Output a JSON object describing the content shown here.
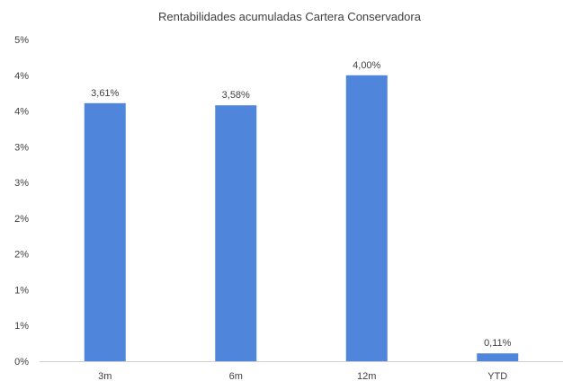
{
  "chart_data": {
    "type": "bar",
    "title": "Rentabilidades  acumuladas  Cartera Conservadora",
    "categories": [
      "3m",
      "6m",
      "12m",
      "YTD"
    ],
    "values": [
      3.61,
      3.58,
      4.0,
      0.11
    ],
    "data_labels": [
      "3,61%",
      "3,58%",
      "4,00%",
      "0,11%"
    ],
    "y_axis": {
      "ylim": [
        0,
        4.5
      ],
      "tick_values": [
        0,
        0.5,
        1,
        1.5,
        2,
        2.5,
        3,
        3.5,
        4,
        4.5
      ],
      "tick_labels": [
        "0%",
        "1%",
        "1%",
        "2%",
        "2%",
        "3%",
        "3%",
        "4%",
        "4%",
        "5%"
      ]
    },
    "grid": false,
    "legend": "none",
    "bar_color": "#4f86dc",
    "axis_color": "#d0d0d0"
  }
}
